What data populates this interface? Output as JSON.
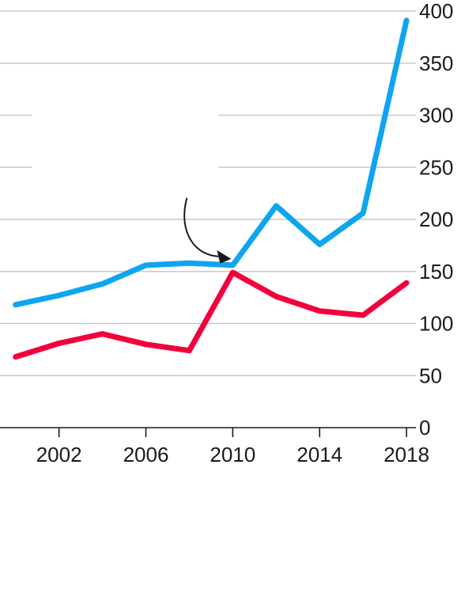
{
  "chart_data": {
    "type": "line",
    "title": "",
    "xlabel": "",
    "ylabel": "",
    "x": [
      2000,
      2002,
      2004,
      2006,
      2008,
      2010,
      2012,
      2014,
      2016,
      2018
    ],
    "xlim": [
      1999.5,
      2018
    ],
    "x_ticks": [
      2002,
      2006,
      2010,
      2014,
      2018
    ],
    "ylim": [
      0,
      400
    ],
    "y_ticks": [
      0,
      50,
      100,
      150,
      200,
      250,
      300,
      350,
      400
    ],
    "grid": "horizontal",
    "y_axis_side": "right",
    "series": [
      {
        "color": "#0ea5f0",
        "values": [
          118,
          127,
          138,
          156,
          158,
          156,
          213,
          176,
          206,
          391
        ]
      },
      {
        "color": "#f2003c",
        "values": [
          68,
          81,
          90,
          80,
          74,
          149,
          126,
          112,
          108,
          139
        ]
      }
    ],
    "annotations": [
      {
        "type": "arrow",
        "target_x": 2010,
        "target_series": 0
      }
    ]
  }
}
